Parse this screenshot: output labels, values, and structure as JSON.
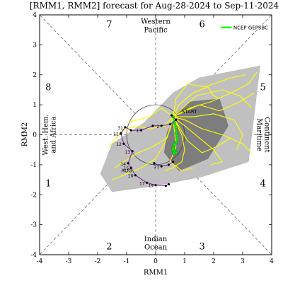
{
  "chart_data": {
    "type": "scatter",
    "title": "[RMM1, RMM2] forecast for Aug-28-2024 to Sep-11-2024",
    "xlabel": "RMM1",
    "ylabel": "RMM2",
    "xlim": [
      -4,
      4
    ],
    "ylim": [
      -4,
      4
    ],
    "xticks": [
      "-4",
      "-3",
      "-2",
      "-1",
      "0",
      "1",
      "2",
      "3",
      "4"
    ],
    "yticks": [
      "-4",
      "-3",
      "-2",
      "-1",
      "0",
      "1",
      "2",
      "3",
      "4"
    ],
    "phases": [
      {
        "label": "1",
        "x": -3.7,
        "y": -1.6
      },
      {
        "label": "2",
        "x": -1.6,
        "y": -3.7
      },
      {
        "label": "3",
        "x": 1.6,
        "y": -3.7
      },
      {
        "label": "4",
        "x": 3.7,
        "y": -1.6
      },
      {
        "label": "5",
        "x": 3.7,
        "y": 1.6
      },
      {
        "label": "6",
        "x": 1.6,
        "y": 3.7
      },
      {
        "label": "7",
        "x": -1.6,
        "y": 3.7
      },
      {
        "label": "8",
        "x": -3.7,
        "y": 1.6
      }
    ],
    "regions": {
      "top": [
        "Western",
        "Pacific"
      ],
      "bottom": [
        "Indian",
        "Ocean"
      ],
      "left": [
        "West. Hem.",
        "and Africa"
      ],
      "right": [
        "Maritime",
        "Continent"
      ]
    },
    "legend": {
      "label": "NCEP GEPSBC",
      "color": "#00ff00",
      "position": "top-right"
    },
    "start_label": "START",
    "month_label": "AUG",
    "colors": {
      "observed": "#7b1fa2",
      "members": "#ffff00",
      "ensemble_mean": "#00ff00",
      "outer_spread": "#c0c0c0",
      "inner_spread": "#7d7d7d",
      "month_label": "#cc0000"
    },
    "spread_outer": [
      [
        -1.9,
        -1.3
      ],
      [
        -1.5,
        -0.3
      ],
      [
        -0.4,
        0.4
      ],
      [
        0.6,
        1.4
      ],
      [
        1.5,
        1.9
      ],
      [
        3.6,
        2.3
      ],
      [
        3.2,
        -0.9
      ],
      [
        1.6,
        -1.4
      ],
      [
        0.0,
        -1.7
      ],
      [
        -1.5,
        -1.9
      ]
    ],
    "spread_inner": [
      [
        0.4,
        0.1
      ],
      [
        0.8,
        0.8
      ],
      [
        1.2,
        1.1
      ],
      [
        2.2,
        1.2
      ],
      [
        2.5,
        0.3
      ],
      [
        1.8,
        -0.8
      ],
      [
        0.8,
        -1.2
      ],
      [
        0.3,
        -0.6
      ]
    ],
    "observed_path": [
      {
        "x": 0.45,
        "y": -1.65,
        "day": ""
      },
      {
        "x": 0.35,
        "y": -1.7,
        "day": ""
      },
      {
        "x": 0.0,
        "y": -1.68,
        "day": "19"
      },
      {
        "x": -0.3,
        "y": -1.6,
        "day": "17"
      },
      {
        "x": -0.7,
        "y": -1.35,
        "day": "16"
      },
      {
        "x": -0.85,
        "y": -1.1,
        "day": "15"
      },
      {
        "x": -0.95,
        "y": -0.95,
        "day": "14"
      },
      {
        "x": -0.8,
        "y": -0.55,
        "day": "13"
      },
      {
        "x": -1.1,
        "y": -0.3,
        "day": "12"
      },
      {
        "x": -1.2,
        "y": 0.05,
        "day": "11"
      },
      {
        "x": -1.05,
        "y": 0.25,
        "day": "31"
      },
      {
        "x": -0.85,
        "y": 0.15,
        "day": ""
      },
      {
        "x": -0.5,
        "y": 0.15,
        "day": "1"
      },
      {
        "x": -0.1,
        "y": 0.3,
        "day": ""
      },
      {
        "x": 0.2,
        "y": 0.3,
        "day": "2"
      },
      {
        "x": 0.5,
        "y": 0.35,
        "day": ""
      },
      {
        "x": 0.7,
        "y": 0.5,
        "day": ""
      },
      {
        "x": 0.55,
        "y": 0.65,
        "day": ""
      }
    ],
    "observed_tail": [
      {
        "x": -0.05,
        "y": -0.95,
        "day": ""
      },
      {
        "x": 0.2,
        "y": -1.05,
        "day": "21"
      },
      {
        "x": 0.45,
        "y": -1.0,
        "day": ""
      },
      {
        "x": 0.6,
        "y": -0.9,
        "day": ""
      }
    ],
    "ensemble_mean": [
      [
        0.6,
        0.6
      ],
      [
        0.65,
        0.4
      ],
      [
        0.7,
        0.25
      ],
      [
        0.7,
        0.05
      ],
      [
        0.75,
        -0.1
      ],
      [
        0.7,
        -0.25
      ],
      [
        0.65,
        -0.35
      ],
      [
        0.6,
        -0.45
      ],
      [
        0.6,
        -0.5
      ],
      [
        0.65,
        -0.55
      ],
      [
        0.7,
        -0.6
      ],
      [
        0.62,
        -0.62
      ]
    ],
    "members": [
      [
        [
          0.6,
          0.6
        ],
        [
          1.2,
          0.9
        ],
        [
          1.9,
          1.1
        ],
        [
          2.6,
          1.4
        ],
        [
          3.2,
          1.7
        ],
        [
          3.5,
          2.1
        ]
      ],
      [
        [
          0.6,
          0.6
        ],
        [
          1.0,
          0.5
        ],
        [
          1.6,
          0.2
        ],
        [
          2.3,
          0.0
        ],
        [
          3.0,
          -0.3
        ],
        [
          3.3,
          -0.6
        ]
      ],
      [
        [
          0.6,
          0.6
        ],
        [
          0.8,
          1.0
        ],
        [
          1.3,
          1.4
        ],
        [
          1.8,
          1.6
        ],
        [
          2.0,
          1.3
        ],
        [
          2.2,
          1.2
        ]
      ],
      [
        [
          0.6,
          0.6
        ],
        [
          0.5,
          0.2
        ],
        [
          0.3,
          -0.3
        ],
        [
          0.0,
          -0.8
        ],
        [
          -0.5,
          -1.1
        ],
        [
          -1.0,
          -1.3
        ],
        [
          -1.5,
          -1.5
        ]
      ],
      [
        [
          0.6,
          0.6
        ],
        [
          0.9,
          0.0
        ],
        [
          1.0,
          -0.5
        ],
        [
          0.9,
          -0.9
        ],
        [
          0.6,
          -1.1
        ],
        [
          0.3,
          -1.2
        ]
      ],
      [
        [
          0.6,
          0.6
        ],
        [
          0.3,
          0.3
        ],
        [
          -0.2,
          0.2
        ],
        [
          -0.7,
          0.3
        ],
        [
          -1.2,
          0.1
        ],
        [
          -1.6,
          -0.4
        ]
      ],
      [
        [
          0.6,
          0.6
        ],
        [
          1.3,
          0.6
        ],
        [
          2.0,
          0.7
        ],
        [
          2.7,
          0.5
        ],
        [
          3.0,
          0.0
        ],
        [
          2.8,
          -0.5
        ]
      ],
      [
        [
          0.6,
          0.6
        ],
        [
          0.7,
          1.2
        ],
        [
          1.1,
          1.7
        ],
        [
          1.7,
          1.6
        ],
        [
          2.6,
          1.9
        ],
        [
          3.1,
          2.0
        ]
      ],
      [
        [
          0.6,
          0.6
        ],
        [
          1.0,
          0.3
        ],
        [
          1.5,
          -0.1
        ],
        [
          2.0,
          -0.5
        ],
        [
          2.3,
          -0.9
        ],
        [
          1.9,
          -1.0
        ]
      ],
      [
        [
          0.6,
          0.6
        ],
        [
          0.4,
          -0.1
        ],
        [
          -0.1,
          -0.4
        ],
        [
          -0.6,
          -0.6
        ],
        [
          -1.1,
          -0.9
        ],
        [
          -1.4,
          -1.1
        ]
      ],
      [
        [
          0.6,
          0.6
        ],
        [
          1.5,
          1.0
        ],
        [
          2.2,
          0.8
        ],
        [
          2.9,
          1.1
        ],
        [
          3.4,
          1.4
        ]
      ],
      [
        [
          0.6,
          0.6
        ],
        [
          0.2,
          0.9
        ],
        [
          -0.2,
          0.6
        ],
        [
          -0.6,
          0.5
        ],
        [
          -1.0,
          0.4
        ]
      ],
      [
        [
          0.6,
          0.6
        ],
        [
          1.1,
          -0.2
        ],
        [
          1.6,
          -0.6
        ],
        [
          2.1,
          -0.4
        ],
        [
          2.6,
          -0.1
        ]
      ],
      [
        [
          0.6,
          0.6
        ],
        [
          0.7,
          -0.4
        ],
        [
          0.5,
          -0.9
        ],
        [
          0.9,
          -1.2
        ],
        [
          1.3,
          -1.1
        ]
      ],
      [
        [
          0.6,
          0.6
        ],
        [
          1.4,
          1.3
        ],
        [
          2.3,
          1.5
        ],
        [
          2.9,
          1.3
        ],
        [
          3.3,
          0.9
        ]
      ]
    ]
  }
}
